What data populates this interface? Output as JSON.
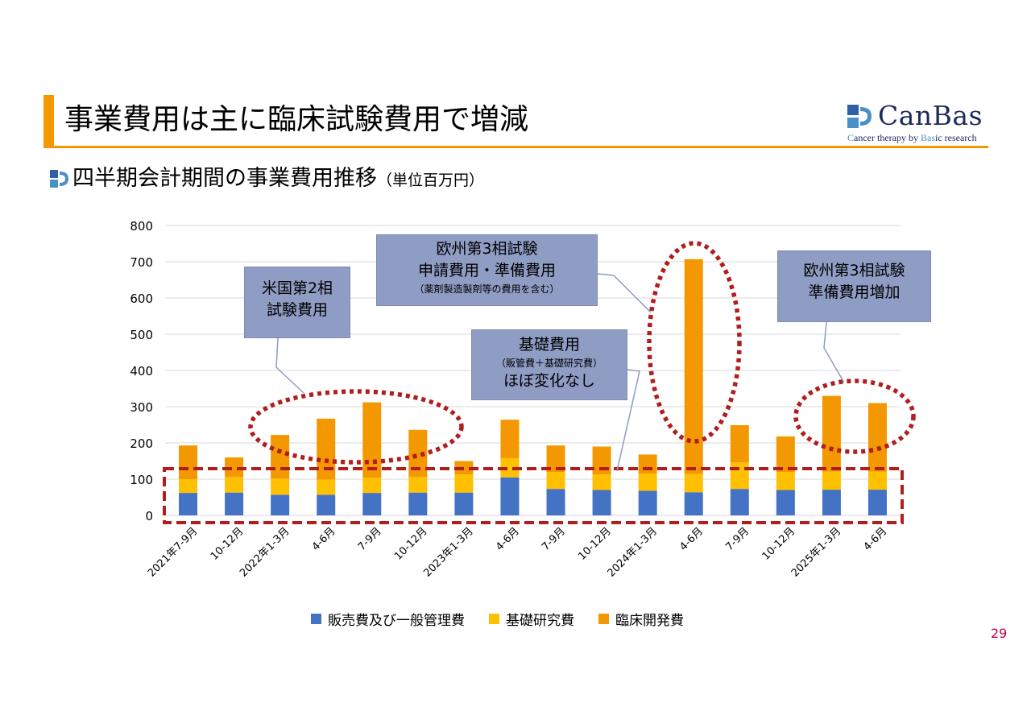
{
  "slide": {
    "title": "事業費用は主に臨床試験費用で増減",
    "subtitle": "四半期会計期間の事業費用推移",
    "subtitle_unit": "（単位百万円）",
    "page_number": "29",
    "logo_name": "CanBas",
    "logo_tagline_parts": [
      "C",
      "ancer therapy by ",
      "Bas",
      "ic research"
    ]
  },
  "callouts": {
    "us_phase2": [
      "米国第2相",
      "試験費用"
    ],
    "eu_phase3_application": [
      "欧州第3相試験",
      "申請費用・準備費用",
      "（薬剤製造製剤等の費用を含む）"
    ],
    "basic_costs": [
      "基礎費用",
      "（販管費＋基礎研究費）",
      "ほぼ変化なし"
    ],
    "eu_phase3_prep": [
      "欧州第3相試験",
      "準備費用増加"
    ]
  },
  "chart_data": {
    "type": "bar",
    "stacked": true,
    "categories": [
      "2021年7-9月",
      "10-12月",
      "2022年1-3月",
      "4-6月",
      "7-9月",
      "10-12月",
      "2023年1-3月",
      "4-6月",
      "7-9月",
      "10-12月",
      "2024年1-3月",
      "4-6月",
      "7-9月",
      "10-12月",
      "2025年1-3月",
      "4-6月"
    ],
    "series": [
      {
        "name": "販売費及び一般管理費",
        "color": "#4472c4",
        "values": [
          62,
          63,
          57,
          57,
          62,
          63,
          63,
          105,
          73,
          70,
          68,
          64,
          73,
          70,
          71,
          71
        ]
      },
      {
        "name": "基礎研究費",
        "color": "#ffc000",
        "values": [
          38,
          43,
          45,
          42,
          42,
          43,
          50,
          53,
          47,
          43,
          47,
          50,
          73,
          50,
          50,
          50
        ]
      },
      {
        "name": "臨床開発費",
        "color": "#f39800",
        "values": [
          93,
          54,
          120,
          168,
          208,
          130,
          37,
          106,
          73,
          77,
          53,
          593,
          103,
          98,
          209,
          189
        ]
      }
    ],
    "ylim": [
      0,
      800
    ],
    "yticks": [
      0,
      100,
      200,
      300,
      400,
      500,
      600,
      700,
      800
    ],
    "grid": true,
    "legend_position": "bottom"
  }
}
